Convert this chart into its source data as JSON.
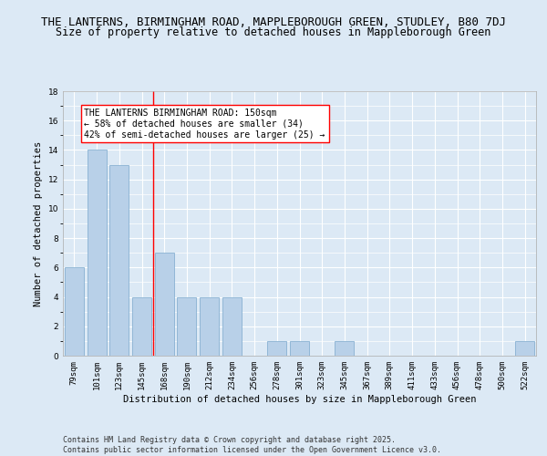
{
  "title": "THE LANTERNS, BIRMINGHAM ROAD, MAPPLEBOROUGH GREEN, STUDLEY, B80 7DJ",
  "subtitle": "Size of property relative to detached houses in Mappleborough Green",
  "xlabel": "Distribution of detached houses by size in Mappleborough Green",
  "ylabel": "Number of detached properties",
  "categories": [
    "79sqm",
    "101sqm",
    "123sqm",
    "145sqm",
    "168sqm",
    "190sqm",
    "212sqm",
    "234sqm",
    "256sqm",
    "278sqm",
    "301sqm",
    "323sqm",
    "345sqm",
    "367sqm",
    "389sqm",
    "411sqm",
    "433sqm",
    "456sqm",
    "478sqm",
    "500sqm",
    "522sqm"
  ],
  "values": [
    6,
    14,
    13,
    4,
    7,
    4,
    4,
    4,
    0,
    1,
    1,
    0,
    1,
    0,
    0,
    0,
    0,
    0,
    0,
    0,
    1
  ],
  "bar_color": "#b8d0e8",
  "bar_edge_color": "#7aa8cc",
  "vline_x": 3.5,
  "vline_color": "red",
  "ylim": [
    0,
    18
  ],
  "yticks": [
    0,
    2,
    4,
    6,
    8,
    10,
    12,
    14,
    16,
    18
  ],
  "annotation_text": "THE LANTERNS BIRMINGHAM ROAD: 150sqm\n← 58% of detached houses are smaller (34)\n42% of semi-detached houses are larger (25) →",
  "annotation_box_color": "white",
  "annotation_box_edge_color": "red",
  "footer_text": "Contains HM Land Registry data © Crown copyright and database right 2025.\nContains public sector information licensed under the Open Government Licence v3.0.",
  "background_color": "#dce9f5",
  "plot_background_color": "#dce9f5",
  "title_fontsize": 9,
  "subtitle_fontsize": 8.5,
  "label_fontsize": 7.5,
  "tick_fontsize": 6.5,
  "footer_fontsize": 6,
  "annot_fontsize": 7
}
